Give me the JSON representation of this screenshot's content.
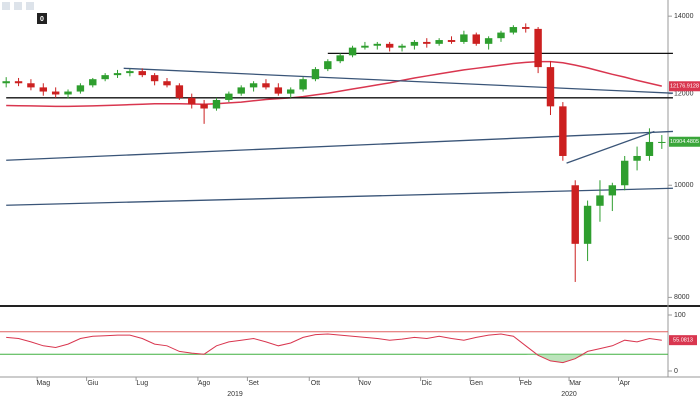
{
  "chart_data": {
    "type": "candlestick",
    "log_scale": true,
    "toolbar_badge": "0",
    "categories": [
      null,
      null,
      null,
      "Mag",
      null,
      null,
      null,
      "Giu",
      null,
      null,
      null,
      "Lug",
      null,
      null,
      null,
      null,
      "Ago",
      null,
      null,
      null,
      "Set",
      null,
      null,
      null,
      null,
      "Ott",
      null,
      null,
      null,
      "Nov",
      null,
      null,
      null,
      null,
      "Dic",
      null,
      null,
      null,
      "Gen",
      null,
      null,
      null,
      "Feb",
      null,
      null,
      null,
      "Mar",
      null,
      null,
      null,
      "Apr",
      null,
      null,
      null
    ],
    "x_groups": [
      {
        "label": "2019",
        "from": 0,
        "to": 37
      },
      {
        "label": "2020",
        "from": 38,
        "to": 53
      }
    ],
    "up_color": "#2e9e2e",
    "down_color": "#cc2020",
    "candles": [
      {
        "open": 12250,
        "high": 12400,
        "low": 12150,
        "close": 12300
      },
      {
        "open": 12300,
        "high": 12380,
        "low": 12180,
        "close": 12250
      },
      {
        "open": 12250,
        "high": 12350,
        "low": 12080,
        "close": 12150
      },
      {
        "open": 12150,
        "high": 12250,
        "low": 11950,
        "close": 12050
      },
      {
        "open": 12050,
        "high": 12150,
        "low": 11900,
        "close": 11980
      },
      {
        "open": 11980,
        "high": 12100,
        "low": 11880,
        "close": 12050
      },
      {
        "open": 12050,
        "high": 12250,
        "low": 12000,
        "close": 12200
      },
      {
        "open": 12200,
        "high": 12380,
        "low": 12150,
        "close": 12350
      },
      {
        "open": 12350,
        "high": 12500,
        "low": 12300,
        "close": 12450
      },
      {
        "open": 12450,
        "high": 12580,
        "low": 12380,
        "close": 12500
      },
      {
        "open": 12500,
        "high": 12600,
        "low": 12420,
        "close": 12550
      },
      {
        "open": 12550,
        "high": 12620,
        "low": 12400,
        "close": 12450
      },
      {
        "open": 12450,
        "high": 12500,
        "low": 12200,
        "close": 12300
      },
      {
        "open": 12300,
        "high": 12380,
        "low": 12150,
        "close": 12200
      },
      {
        "open": 12200,
        "high": 12250,
        "low": 11850,
        "close": 11900
      },
      {
        "open": 11900,
        "high": 12000,
        "low": 11650,
        "close": 11750
      },
      {
        "open": 11750,
        "high": 11850,
        "low": 11300,
        "close": 11650
      },
      {
        "open": 11650,
        "high": 11900,
        "low": 11600,
        "close": 11850
      },
      {
        "open": 11850,
        "high": 12050,
        "low": 11800,
        "close": 12000
      },
      {
        "open": 12000,
        "high": 12200,
        "low": 11950,
        "close": 12150
      },
      {
        "open": 12150,
        "high": 12300,
        "low": 12050,
        "close": 12250
      },
      {
        "open": 12250,
        "high": 12350,
        "low": 12100,
        "close": 12150
      },
      {
        "open": 12150,
        "high": 12250,
        "low": 11950,
        "close": 12000
      },
      {
        "open": 12000,
        "high": 12150,
        "low": 11900,
        "close": 12100
      },
      {
        "open": 12100,
        "high": 12400,
        "low": 12050,
        "close": 12350
      },
      {
        "open": 12350,
        "high": 12650,
        "low": 12300,
        "close": 12600
      },
      {
        "open": 12600,
        "high": 12850,
        "low": 12550,
        "close": 12800
      },
      {
        "open": 12800,
        "high": 13000,
        "low": 12750,
        "close": 12950
      },
      {
        "open": 12950,
        "high": 13200,
        "low": 12900,
        "close": 13150
      },
      {
        "open": 13150,
        "high": 13300,
        "low": 13100,
        "close": 13200
      },
      {
        "open": 13200,
        "high": 13300,
        "low": 13100,
        "close": 13250
      },
      {
        "open": 13250,
        "high": 13300,
        "low": 13050,
        "close": 13150
      },
      {
        "open": 13150,
        "high": 13250,
        "low": 13050,
        "close": 13200
      },
      {
        "open": 13200,
        "high": 13350,
        "low": 13100,
        "close": 13300
      },
      {
        "open": 13300,
        "high": 13400,
        "low": 13150,
        "close": 13250
      },
      {
        "open": 13250,
        "high": 13400,
        "low": 13200,
        "close": 13350
      },
      {
        "open": 13350,
        "high": 13450,
        "low": 13250,
        "close": 13300
      },
      {
        "open": 13300,
        "high": 13600,
        "low": 13250,
        "close": 13500
      },
      {
        "open": 13500,
        "high": 13550,
        "low": 13200,
        "close": 13250
      },
      {
        "open": 13250,
        "high": 13450,
        "low": 13100,
        "close": 13400
      },
      {
        "open": 13400,
        "high": 13600,
        "low": 13300,
        "close": 13550
      },
      {
        "open": 13550,
        "high": 13750,
        "low": 13500,
        "close": 13700
      },
      {
        "open": 13700,
        "high": 13800,
        "low": 13550,
        "close": 13650
      },
      {
        "open": 13650,
        "high": 13700,
        "low": 12500,
        "close": 12650
      },
      {
        "open": 12650,
        "high": 12800,
        "low": 11500,
        "close": 11700
      },
      {
        "open": 11700,
        "high": 11800,
        "low": 10500,
        "close": 10600
      },
      {
        "open": 10000,
        "high": 10100,
        "low": 8250,
        "close": 8900
      },
      {
        "open": 8900,
        "high": 9700,
        "low": 8600,
        "close": 9600
      },
      {
        "open": 9600,
        "high": 10100,
        "low": 9300,
        "close": 9800
      },
      {
        "open": 9800,
        "high": 10050,
        "low": 9500,
        "close": 10000
      },
      {
        "open": 10000,
        "high": 10600,
        "low": 9900,
        "close": 10500
      },
      {
        "open": 10500,
        "high": 10800,
        "low": 10300,
        "close": 10600
      },
      {
        "open": 10600,
        "high": 11200,
        "low": 10500,
        "close": 10900
      },
      {
        "open": 10900,
        "high": 11050,
        "low": 10750,
        "close": 10900
      }
    ],
    "moving_average": {
      "color": "#d9364f",
      "values": [
        11720,
        11715,
        11710,
        11705,
        11700,
        11700,
        11705,
        11710,
        11720,
        11730,
        11740,
        11750,
        11760,
        11760,
        11760,
        11755,
        11750,
        11760,
        11780,
        11800,
        11830,
        11860,
        11880,
        11900,
        11930,
        11970,
        12010,
        12060,
        12110,
        12160,
        12210,
        12260,
        12320,
        12380,
        12430,
        12480,
        12530,
        12580,
        12620,
        12660,
        12700,
        12740,
        12770,
        12790,
        12790,
        12760,
        12700,
        12630,
        12550,
        12470,
        12400,
        12320,
        12250,
        12180
      ]
    },
    "trendlines": [
      {
        "color": "#111111",
        "x": [
          26,
          53.9
        ],
        "y": [
          13000,
          13000
        ]
      },
      {
        "color": "#111111",
        "x": [
          0,
          53.9
        ],
        "y": [
          11900,
          11900
        ]
      },
      {
        "color": "#3a5578",
        "x": [
          9.5,
          53.9
        ],
        "y": [
          12620,
          12010
        ]
      },
      {
        "color": "#3a5578",
        "x": [
          0,
          53.9
        ],
        "y": [
          10510,
          11130
        ]
      },
      {
        "color": "#3a5578",
        "x": [
          0,
          53.9
        ],
        "y": [
          9610,
          9940
        ]
      },
      {
        "color": "#3a5578",
        "x": [
          45.3,
          52.4
        ],
        "y": [
          10450,
          11130
        ]
      }
    ],
    "ylim": [
      7880,
      14400
    ],
    "yticks": [
      14000,
      12000,
      10000,
      9000,
      8000
    ],
    "price_labels": [
      {
        "text": "12176.9128",
        "value": 12176.9128,
        "color": "#d9364f"
      },
      {
        "text": "10904.4805",
        "value": 10904.4805,
        "color": "#3aa63a"
      }
    ],
    "oscillator": {
      "color": "#d9364f",
      "ylim": [
        0,
        100
      ],
      "yticks": [
        100,
        0
      ],
      "levels": [
        {
          "value": 70,
          "color": "#e06060"
        },
        {
          "value": 30,
          "color": "#40b040"
        }
      ],
      "values": [
        60,
        58,
        52,
        45,
        42,
        48,
        58,
        62,
        63,
        64,
        64,
        58,
        48,
        45,
        35,
        32,
        30,
        45,
        52,
        55,
        58,
        52,
        45,
        50,
        60,
        65,
        66,
        64,
        62,
        60,
        58,
        55,
        57,
        60,
        58,
        62,
        58,
        55,
        60,
        64,
        66,
        62,
        45,
        28,
        18,
        15,
        22,
        35,
        40,
        45,
        55,
        52,
        58,
        55
      ],
      "last_label": {
        "text": "55.0813",
        "value": 55.0813
      }
    }
  }
}
